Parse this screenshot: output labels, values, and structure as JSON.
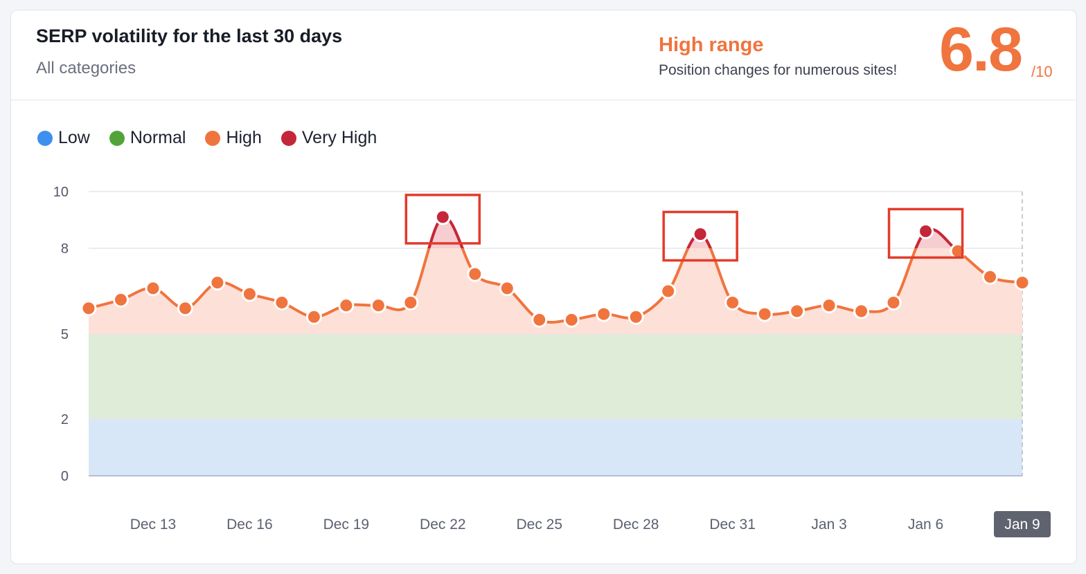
{
  "header": {
    "title": "SERP volatility for the last 30 days",
    "subtitle": "All categories",
    "range_label": "High range",
    "range_description": "Position changes for numerous sites!",
    "score": "6.8",
    "score_max": "/10"
  },
  "colors": {
    "low": "#3d8ff0",
    "normal": "#52a43a",
    "high": "#f0743e",
    "very_high": "#c4273a",
    "band_low": "#d8e7f7",
    "band_normal": "#dfecd8",
    "band_high": "#fde0d7",
    "highlight_box": "#e23b2b",
    "active_tick_bg": "#5f636f"
  },
  "chart_data": {
    "type": "line",
    "title": "SERP volatility for the last 30 days",
    "subtitle": "All categories",
    "legend": [
      {
        "key": "low",
        "label": "Low",
        "range": [
          0,
          2
        ]
      },
      {
        "key": "normal",
        "label": "Normal",
        "range": [
          2,
          5
        ]
      },
      {
        "key": "high",
        "label": "High",
        "range": [
          5,
          8
        ]
      },
      {
        "key": "very_high",
        "label": "Very High",
        "range": [
          8,
          10
        ]
      }
    ],
    "legend_position": "top-left",
    "yticks": [
      0,
      2,
      5,
      8,
      10
    ],
    "ylim": [
      0,
      10
    ],
    "xticks": [
      {
        "label": "Dec 13",
        "index": 2
      },
      {
        "label": "Dec 16",
        "index": 5
      },
      {
        "label": "Dec 19",
        "index": 8
      },
      {
        "label": "Dec 22",
        "index": 11
      },
      {
        "label": "Dec 25",
        "index": 14
      },
      {
        "label": "Dec 28",
        "index": 17
      },
      {
        "label": "Dec 31",
        "index": 20
      },
      {
        "label": "Jan 3",
        "index": 23
      },
      {
        "label": "Jan 6",
        "index": 26
      },
      {
        "label": "Jan 9",
        "index": 29,
        "active": true
      }
    ],
    "x": [
      "Dec 11",
      "Dec 12",
      "Dec 13",
      "Dec 14",
      "Dec 15",
      "Dec 16",
      "Dec 17",
      "Dec 18",
      "Dec 19",
      "Dec 20",
      "Dec 21",
      "Dec 22",
      "Dec 23",
      "Dec 24",
      "Dec 25",
      "Dec 26",
      "Dec 27",
      "Dec 28",
      "Dec 29",
      "Dec 30",
      "Dec 31",
      "Jan 1",
      "Jan 2",
      "Jan 3",
      "Jan 4",
      "Jan 5",
      "Jan 6",
      "Jan 7",
      "Jan 8",
      "Jan 9"
    ],
    "series": [
      {
        "values": [
          5.9,
          6.2,
          6.6,
          5.9,
          6.8,
          6.4,
          6.1,
          5.6,
          6.0,
          6.0,
          6.1,
          9.1,
          7.1,
          6.6,
          5.5,
          5.5,
          5.7,
          5.6,
          6.5,
          8.5,
          6.1,
          5.7,
          5.8,
          6.0,
          5.8,
          6.1,
          8.6,
          7.9,
          7.0,
          6.8
        ]
      }
    ],
    "highlighted_indices": [
      11,
      19,
      26
    ],
    "grid": true
  }
}
